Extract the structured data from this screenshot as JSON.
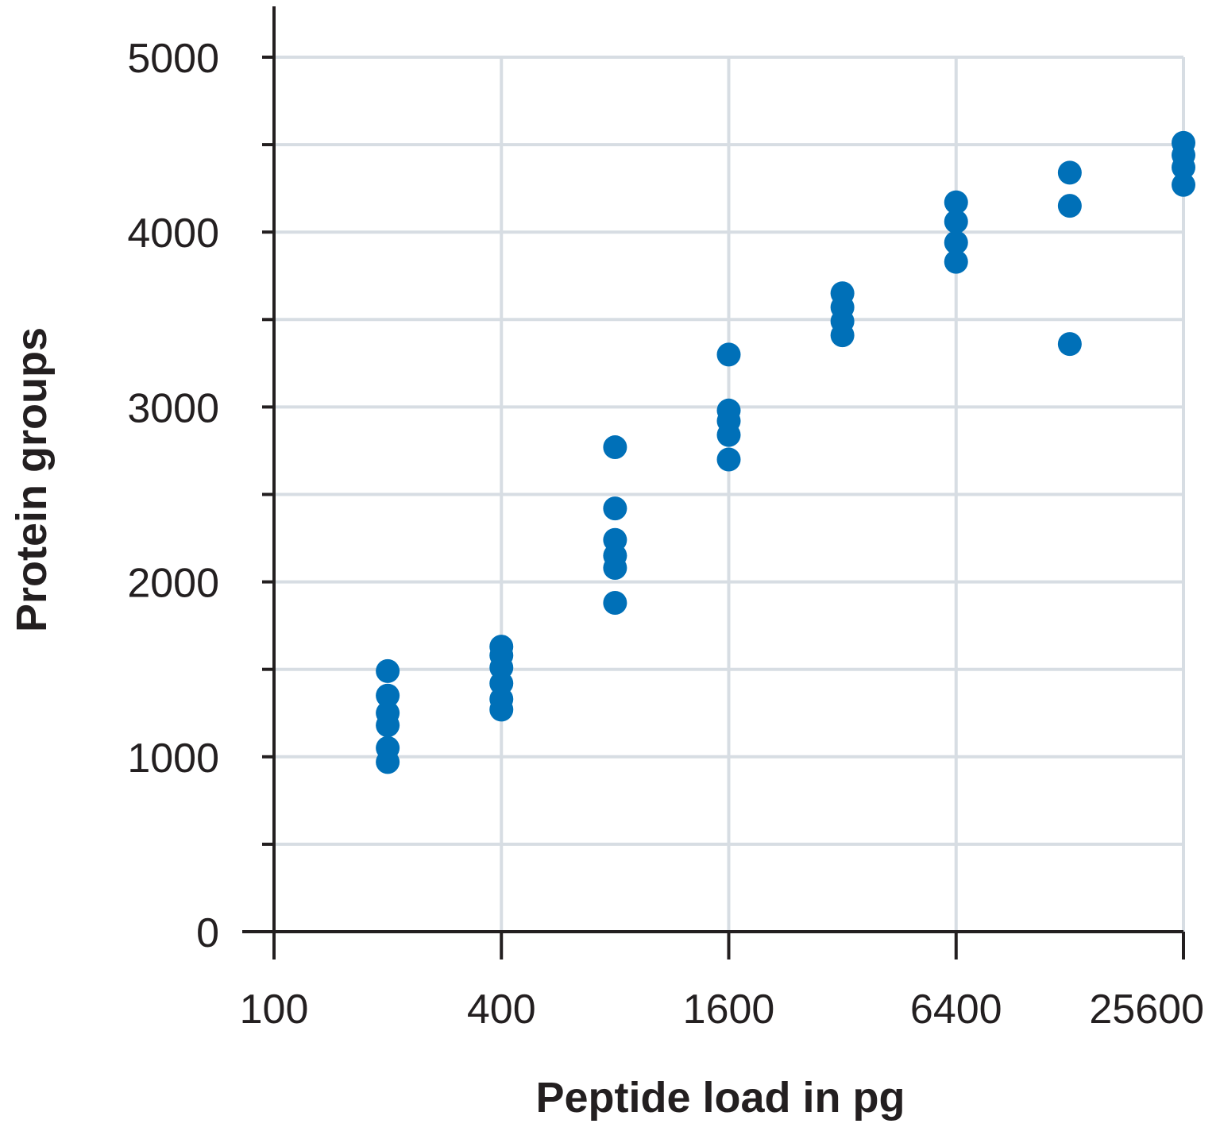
{
  "chart_data": {
    "type": "scatter",
    "xlabel": "Peptide load in pg",
    "ylabel": "Protein groups",
    "x_scale": "log2",
    "xlim": [
      100,
      25600
    ],
    "ylim": [
      0,
      5000
    ],
    "x_ticks": [
      "100",
      "400",
      "1600",
      "6400",
      "25600"
    ],
    "x_tick_values": [
      100,
      400,
      1600,
      6400,
      25600
    ],
    "y_ticks": [
      "0",
      "1000",
      "2000",
      "3000",
      "4000",
      "5000"
    ],
    "y_tick_values": [
      0,
      1000,
      2000,
      3000,
      4000,
      5000
    ],
    "grid": true,
    "marker_color": "#0070b8",
    "series": [
      {
        "points": [
          [
            200,
            970
          ],
          [
            200,
            1050
          ],
          [
            200,
            1180
          ],
          [
            200,
            1250
          ],
          [
            200,
            1350
          ],
          [
            200,
            1490
          ],
          [
            400,
            1270
          ],
          [
            400,
            1330
          ],
          [
            400,
            1420
          ],
          [
            400,
            1510
          ],
          [
            400,
            1580
          ],
          [
            400,
            1630
          ],
          [
            800,
            1880
          ],
          [
            800,
            2080
          ],
          [
            800,
            2150
          ],
          [
            800,
            2240
          ],
          [
            800,
            2420
          ],
          [
            800,
            2770
          ],
          [
            1600,
            2700
          ],
          [
            1600,
            2840
          ],
          [
            1600,
            2920
          ],
          [
            1600,
            2980
          ],
          [
            1600,
            3300
          ],
          [
            3200,
            3410
          ],
          [
            3200,
            3490
          ],
          [
            3200,
            3570
          ],
          [
            3200,
            3650
          ],
          [
            6400,
            3830
          ],
          [
            6400,
            3940
          ],
          [
            6400,
            4060
          ],
          [
            6400,
            4170
          ],
          [
            12800,
            3360
          ],
          [
            12800,
            4150
          ],
          [
            12800,
            4340
          ],
          [
            25600,
            4270
          ],
          [
            25600,
            4370
          ],
          [
            25600,
            4440
          ],
          [
            25600,
            4510
          ]
        ]
      }
    ]
  }
}
